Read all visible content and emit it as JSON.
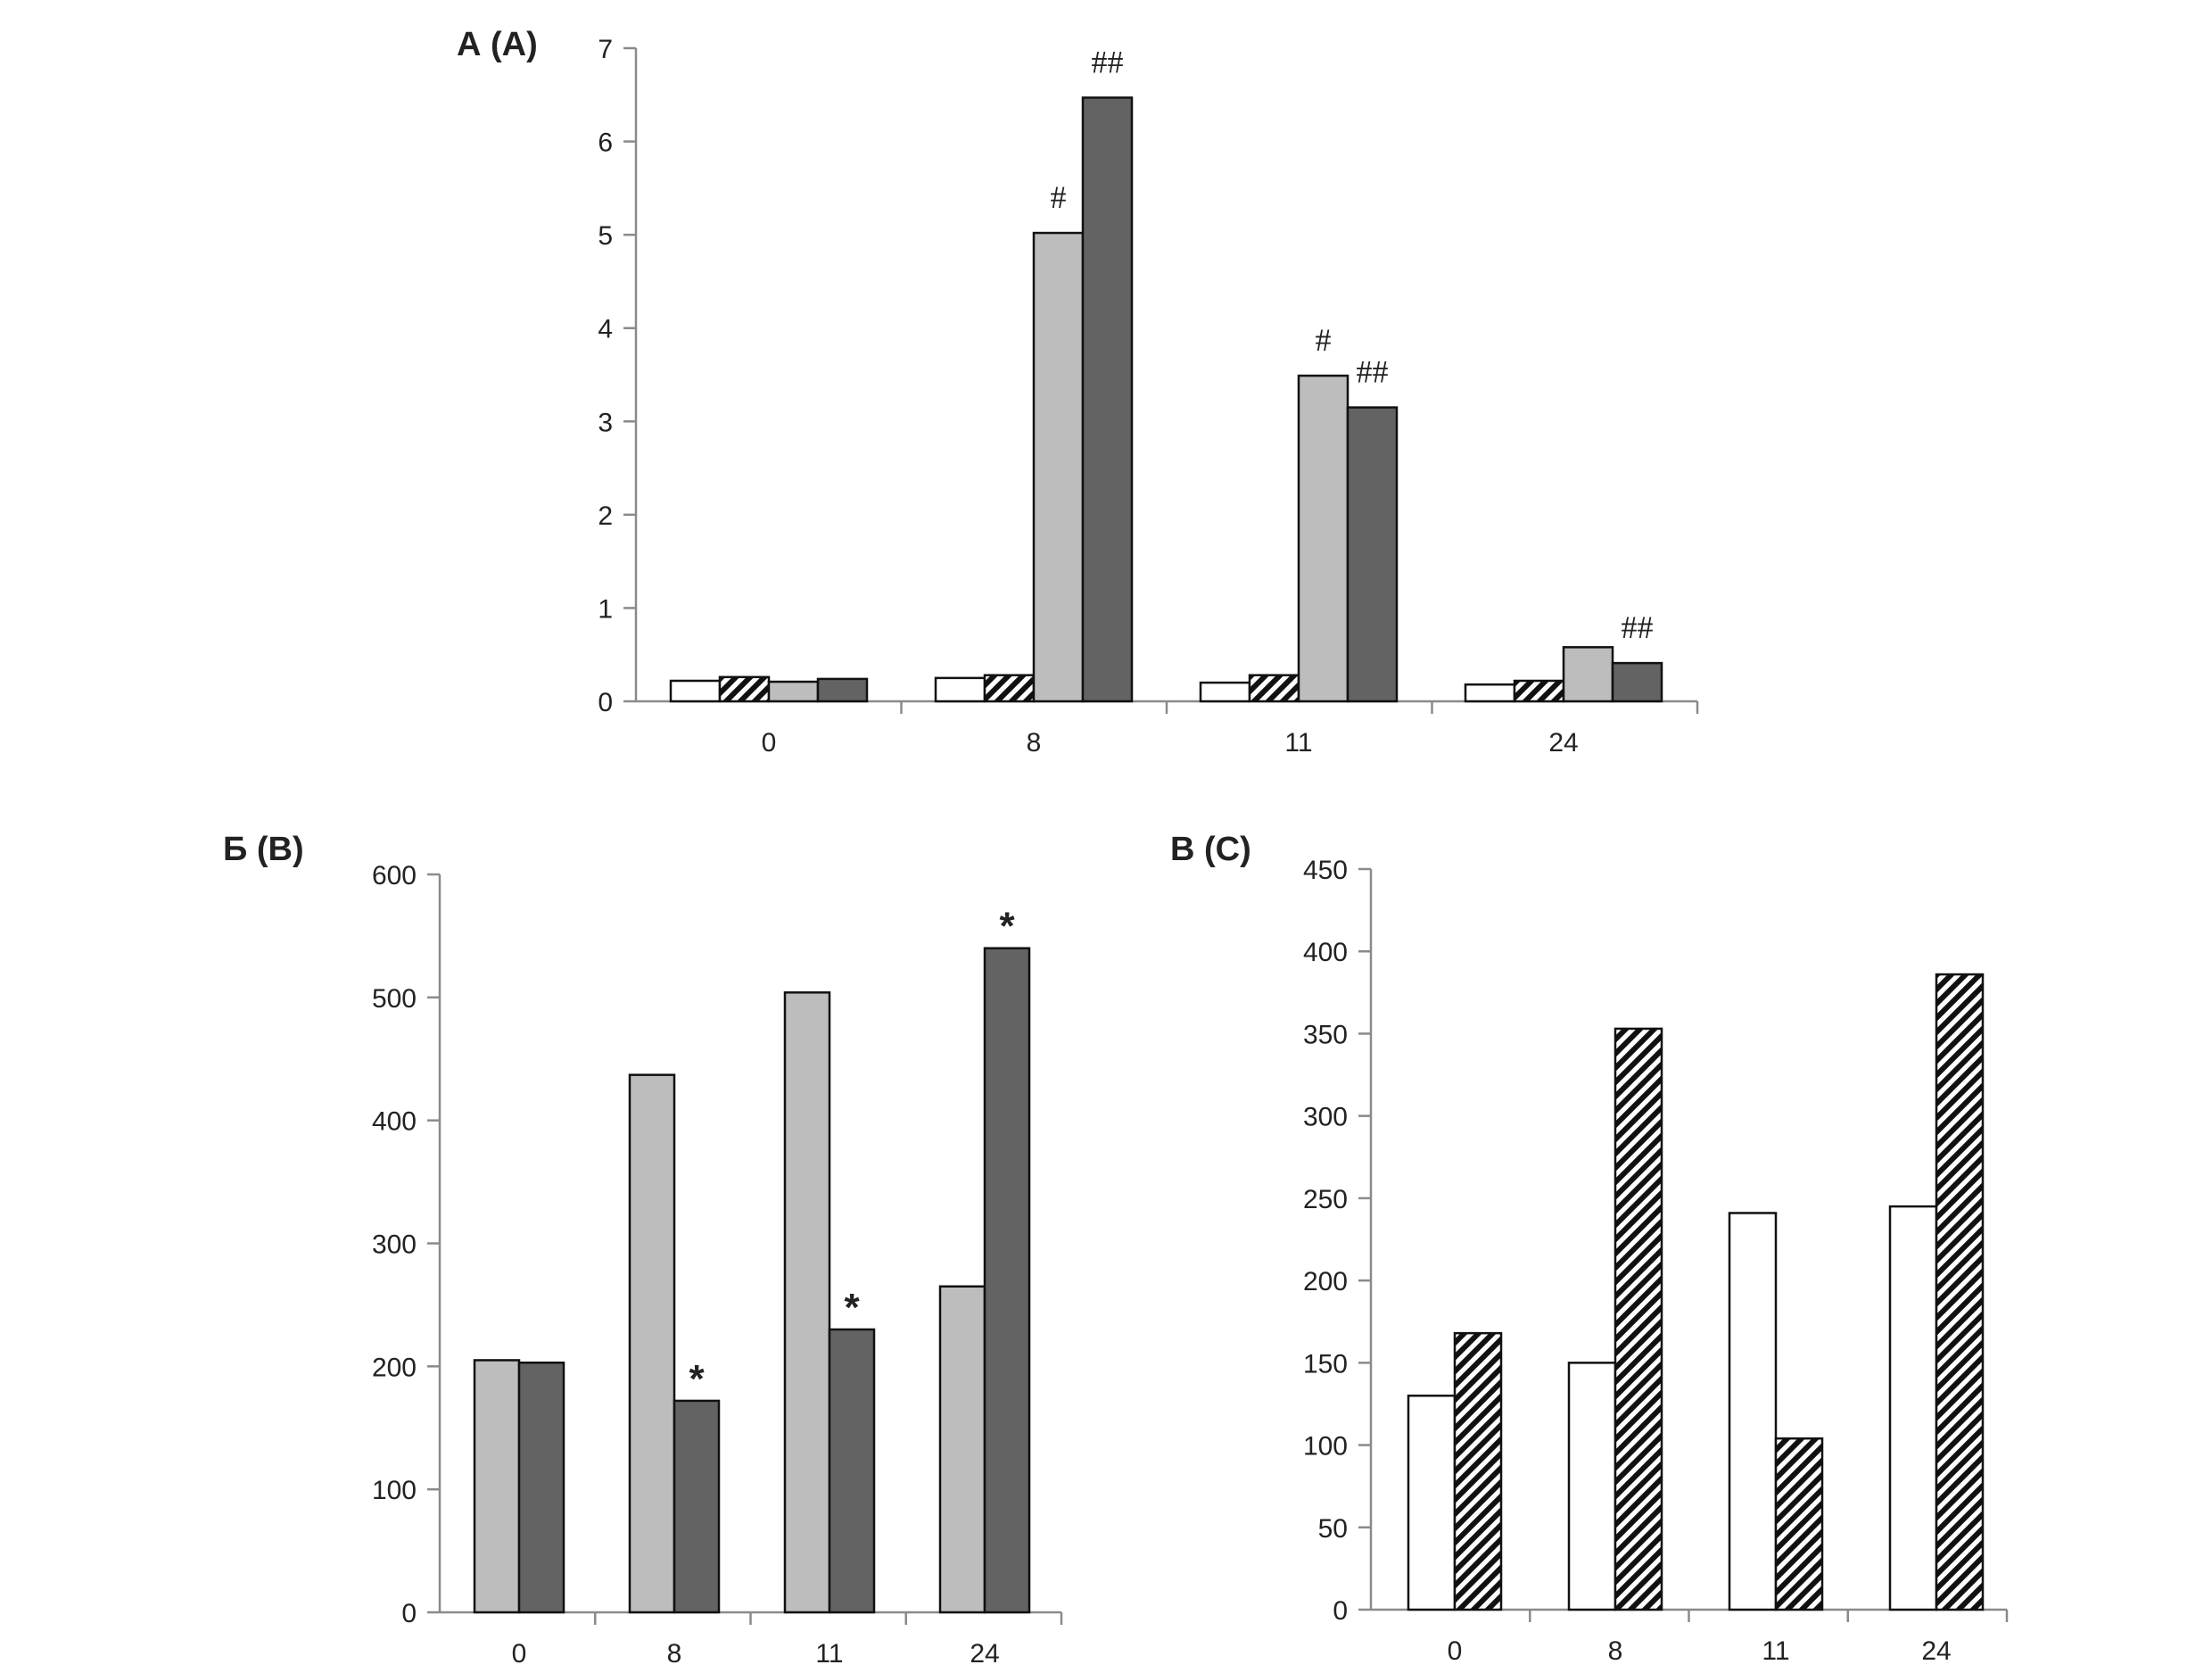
{
  "colors": {
    "white": "#ffffff",
    "light_gray": "#bdbdbd",
    "dark_gray": "#636363",
    "hatch": "#111111"
  },
  "chart_data": [
    {
      "id": "A",
      "type": "bar",
      "title": "А (A)",
      "xlabel": "",
      "ylabel": "",
      "categories": [
        "0",
        "8",
        "11",
        "24"
      ],
      "ylim": [
        0,
        7
      ],
      "yticks": [
        "0",
        "1",
        "2",
        "3",
        "4",
        "5",
        "6",
        "7"
      ],
      "series": [
        {
          "name": "white",
          "fill": "white",
          "values": [
            0.22,
            0.25,
            0.2,
            0.18
          ]
        },
        {
          "name": "hatched",
          "fill": "hatch",
          "values": [
            0.26,
            0.28,
            0.28,
            0.22
          ]
        },
        {
          "name": "light-gray",
          "fill": "light_gray",
          "values": [
            0.21,
            5.02,
            3.49,
            0.58
          ]
        },
        {
          "name": "dark-gray",
          "fill": "dark_gray",
          "values": [
            0.24,
            6.47,
            3.15,
            0.41
          ]
        }
      ],
      "annotations": [
        {
          "category": 1,
          "series": 2,
          "text": "#"
        },
        {
          "category": 1,
          "series": 3,
          "text": "##"
        },
        {
          "category": 2,
          "series": 2,
          "text": "#"
        },
        {
          "category": 2,
          "series": 3,
          "text": "##"
        },
        {
          "category": 3,
          "series": 3,
          "text": "##"
        }
      ]
    },
    {
      "id": "B",
      "type": "bar",
      "title": "Б (B)",
      "xlabel": "",
      "ylabel": "",
      "categories": [
        "0",
        "8",
        "11",
        "24"
      ],
      "ylim": [
        0,
        600
      ],
      "yticks": [
        "0",
        "100",
        "200",
        "300",
        "400",
        "500",
        "600"
      ],
      "series": [
        {
          "name": "light-gray",
          "fill": "light_gray",
          "values": [
            205,
            437,
            504,
            265
          ]
        },
        {
          "name": "dark-gray",
          "fill": "dark_gray",
          "values": [
            203,
            172,
            230,
            540
          ]
        }
      ],
      "annotations": [
        {
          "category": 1,
          "series": 1,
          "text": "*"
        },
        {
          "category": 2,
          "series": 1,
          "text": "*"
        },
        {
          "category": 3,
          "series": 1,
          "text": "*"
        }
      ]
    },
    {
      "id": "C",
      "type": "bar",
      "title": "В (C)",
      "xlabel": "",
      "ylabel": "",
      "categories": [
        "0",
        "8",
        "11",
        "24"
      ],
      "ylim": [
        0,
        450
      ],
      "yticks": [
        "0",
        "50",
        "100",
        "150",
        "200",
        "250",
        "300",
        "350",
        "400",
        "450"
      ],
      "series": [
        {
          "name": "white",
          "fill": "white",
          "values": [
            130,
            150,
            241,
            245
          ]
        },
        {
          "name": "hatched",
          "fill": "hatch",
          "values": [
            168,
            353,
            104,
            386
          ]
        }
      ],
      "annotations": []
    }
  ]
}
